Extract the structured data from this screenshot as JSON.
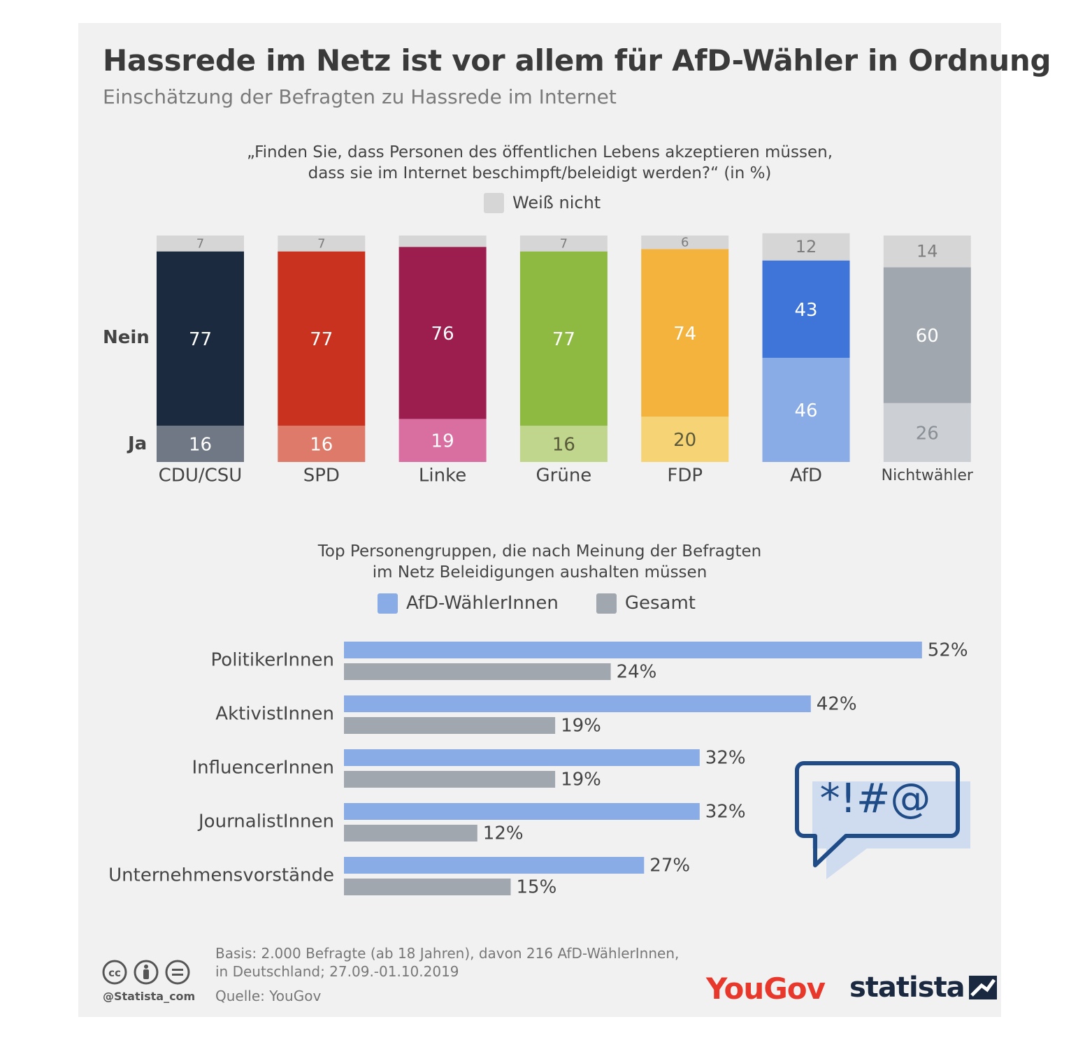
{
  "header": {
    "title": "Hassrede im Netz ist vor allem für AfD-Wähler in Ordnung",
    "subtitle": "Einschätzung der Befragten zu Hassrede im Internet"
  },
  "chart_data": [
    {
      "type": "bar",
      "stacked": true,
      "title_line1": "„Finden Sie, dass Personen des öffentlichen Lebens akzeptieren müssen,",
      "title_line2": "dass sie im Internet beschimpft/beleidigt werden?“ (in %)",
      "row_labels": {
        "nein": "Nein",
        "ja": "Ja"
      },
      "legend": [
        {
          "name": "Weiß nicht",
          "color": "#d6d6d6"
        }
      ],
      "categories": [
        "CDU/CSU",
        "SPD",
        "Linke",
        "Grüne",
        "FDP",
        "AfD",
        "Nichtwähler"
      ],
      "series": [
        {
          "name": "Ja",
          "values": [
            16,
            16,
            19,
            16,
            20,
            46,
            26
          ],
          "labels": [
            "16",
            "16",
            "19",
            "16",
            "20",
            "46",
            "26"
          ]
        },
        {
          "name": "Nein",
          "values": [
            77,
            77,
            76,
            77,
            74,
            43,
            60
          ],
          "labels": [
            "77",
            "77",
            "76",
            "77",
            "74",
            "43",
            "60"
          ]
        },
        {
          "name": "Weiß nicht",
          "values": [
            7,
            7,
            5,
            7,
            6,
            12,
            14
          ],
          "labels": [
            "7",
            "7",
            "",
            "7",
            "6",
            "12",
            "14"
          ]
        }
      ],
      "colors": {
        "nein": [
          "#1b2a3e",
          "#c9321f",
          "#9c1e4f",
          "#8fba42",
          "#f3b33d",
          "#3f75d9",
          "#a1a7af"
        ],
        "ja": [
          "#6f7884",
          "#dd7a69",
          "#d96fa0",
          "#bfd68c",
          "#f6d374",
          "#89abe6",
          "#ccd0d5"
        ],
        "weiss": "#d6d6d6"
      }
    },
    {
      "type": "bar",
      "orientation": "horizontal",
      "title_line1": "Top Personengruppen, die nach Meinung der Befragten",
      "title_line2": "im Netz Beleidigungen aushalten müssen",
      "categories": [
        "PolitikerInnen",
        "AktivistInnen",
        "InfluencerInnen",
        "JournalistInnen",
        "Unternehmensvorstände"
      ],
      "series": [
        {
          "name": "AfD-WählerInnen",
          "color": "#89abe6",
          "values": [
            52,
            42,
            32,
            32,
            27
          ],
          "labels": [
            "52%",
            "42%",
            "32%",
            "32%",
            "27%"
          ]
        },
        {
          "name": "Gesamt",
          "color": "#a1a7af",
          "values": [
            24,
            19,
            19,
            12,
            15
          ],
          "labels": [
            "24%",
            "19%",
            "19%",
            "12%",
            "15%"
          ]
        }
      ],
      "unit": "%"
    }
  ],
  "footer": {
    "basis_line1": "Basis: 2.000 Befragte (ab 18 Jahren), davon 216 AfD-WählerInnen,",
    "basis_line2": "in Deutschland; 27.09.-01.10.2019",
    "source": "Quelle: YouGov",
    "handle": "@Statista_com",
    "brand1": "YouGov",
    "brand2": "statista"
  },
  "icons": {
    "license": [
      "cc-icon",
      "by-icon",
      "nd-icon"
    ],
    "speech": "speech-bubble-icon",
    "speech_text": "*!#@"
  }
}
